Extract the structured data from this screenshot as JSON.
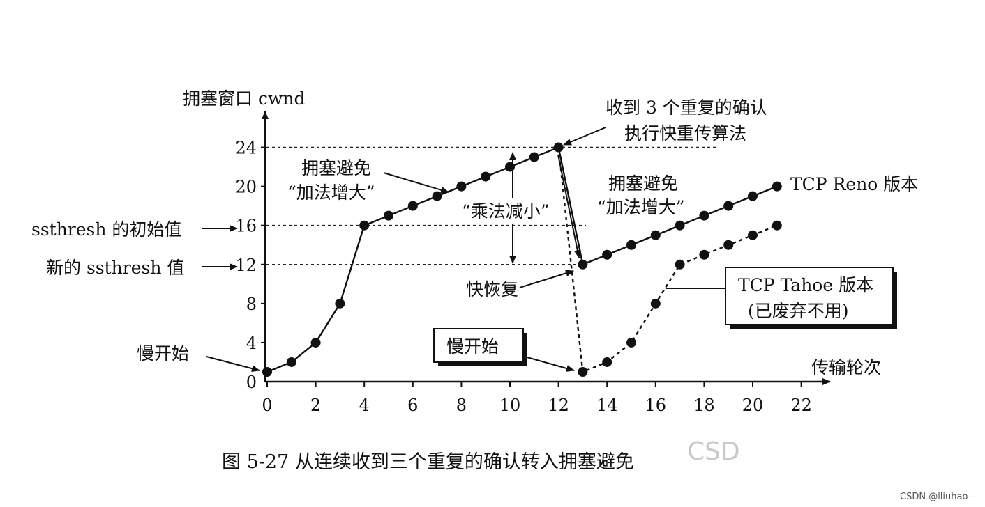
{
  "chart_data": {
    "type": "line",
    "ylabel": "拥塞窗口 cwnd",
    "xlabel": "传输轮次",
    "xlim": [
      0,
      22
    ],
    "ylim": [
      0,
      26
    ],
    "x_ticks": [
      "0",
      "2",
      "4",
      "6",
      "8",
      "10",
      "12",
      "14",
      "16",
      "18",
      "20",
      "22"
    ],
    "y_ticks": [
      "0",
      "4",
      "8",
      "12",
      "16",
      "20",
      "24"
    ],
    "series": [
      {
        "name": "TCP Reno 版本",
        "style": "solid",
        "x": [
          0,
          1,
          2,
          3,
          4,
          5,
          6,
          7,
          8,
          9,
          10,
          11,
          12,
          13,
          14,
          15,
          16,
          17,
          18,
          19,
          20,
          21
        ],
        "y": [
          1,
          2,
          4,
          8,
          16,
          17,
          18,
          19,
          20,
          21,
          22,
          23,
          24,
          12,
          13,
          14,
          15,
          16,
          17,
          18,
          19,
          20
        ]
      },
      {
        "name": "TCP Tahoe 版本",
        "style": "dashed",
        "x": [
          12,
          13,
          14,
          15,
          16,
          17,
          18,
          19,
          20,
          21
        ],
        "y": [
          24,
          1,
          2,
          4,
          8,
          12,
          13,
          14,
          15,
          16
        ]
      }
    ],
    "reference_lines": [
      {
        "y": 24,
        "from": 0,
        "to": 22
      },
      {
        "y": 16,
        "from": 0,
        "to": 13
      },
      {
        "y": 12,
        "from": 0,
        "to": 13
      }
    ],
    "annotations": {
      "slow_start_left": "慢开始",
      "slow_start_box": "慢开始",
      "ssthresh_initial": "ssthresh 的初始值",
      "ssthresh_new": "新的 ssthresh 值",
      "cong_avoid_1_line1": "拥塞避免",
      "cong_avoid_1_line2": "“加法增大”",
      "cong_avoid_2_line1": "拥塞避免",
      "cong_avoid_2_line2": "“加法增大”",
      "mult_decrease": "“乘法减小”",
      "dup_ack_line1": "收到 3 个重复的确认",
      "dup_ack_line2": "执行快重传算法",
      "fast_recovery": "快恢复",
      "reno_label": "TCP Reno 版本",
      "tahoe_line1": "TCP Tahoe 版本",
      "tahoe_line2": "(已废弃不用)"
    }
  },
  "caption": "图 5-27   从连续收到三个重复的确认转入拥塞避免",
  "watermark_center": "CSD",
  "watermark_corner": "CSDN @lliuhao--"
}
